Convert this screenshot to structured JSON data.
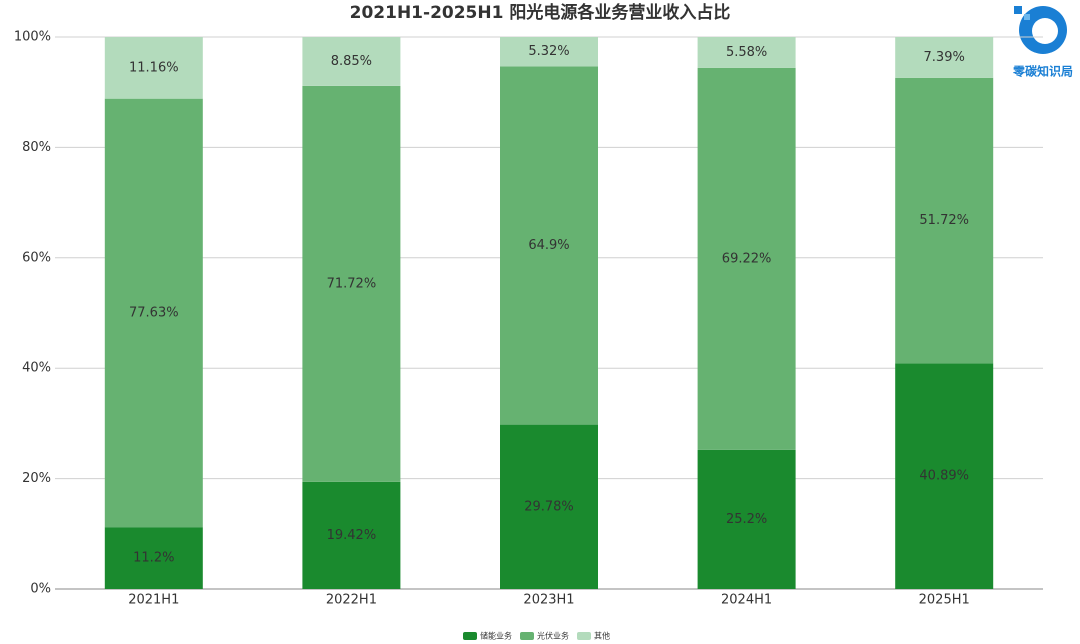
{
  "chart_data": {
    "type": "stacked-bar",
    "title": "2021H1-2025H1 阳光电源各业务营业收入占比",
    "watermark": "零碳知识局",
    "categories": [
      "2021H1",
      "2022H1",
      "2023H1",
      "2024H1",
      "2025H1"
    ],
    "series": [
      {
        "name": "储能业务",
        "color": "#1a8a2e",
        "values": [
          11.2,
          19.42,
          29.78,
          25.2,
          40.89
        ],
        "value_labels": [
          "11.2%",
          "19.42%",
          "29.78%",
          "25.2%",
          "40.89%"
        ]
      },
      {
        "name": "光伏业务",
        "color": "#66b271",
        "values": [
          77.63,
          71.72,
          64.9,
          69.22,
          51.72
        ],
        "value_labels": [
          "77.63%",
          "71.72%",
          "64.9%",
          "69.22%",
          "51.72%"
        ]
      },
      {
        "name": "其他",
        "color": "#b3dbbc",
        "values": [
          11.16,
          8.85,
          5.32,
          5.58,
          7.39
        ],
        "value_labels": [
          "11.16%",
          "8.85%",
          "5.32%",
          "5.58%",
          "7.39%"
        ]
      }
    ],
    "ylim": [
      0,
      100
    ],
    "yticks": [
      {
        "value": 0,
        "label": "0%"
      },
      {
        "value": 20,
        "label": "20%"
      },
      {
        "value": 40,
        "label": "40%"
      },
      {
        "value": 60,
        "label": "60%"
      },
      {
        "value": 80,
        "label": "80%"
      },
      {
        "value": 100,
        "label": "100%"
      }
    ],
    "grid": true,
    "legend": "bottom"
  }
}
